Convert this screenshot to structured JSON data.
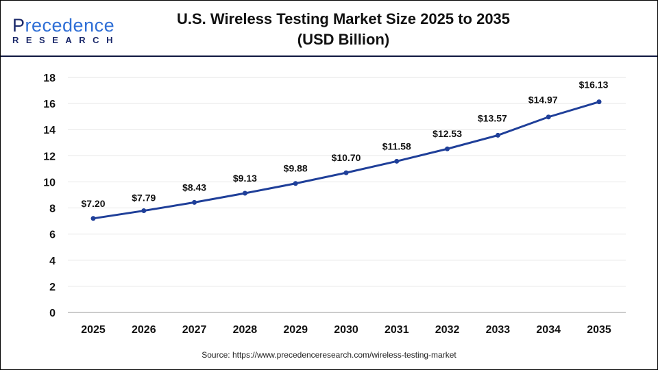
{
  "logo": {
    "text_line1": "Precedence",
    "text_line2": "RESEARCH"
  },
  "title_line1": "U.S. Wireless Testing Market Size 2025 to 2035",
  "title_line2": "(USD Billion)",
  "source": "Source: https://www.precedenceresearch.com/wireless-testing-market",
  "chart_data": {
    "type": "line",
    "title": "U.S. Wireless Testing Market Size 2025 to 2035 (USD Billion)",
    "categories": [
      "2025",
      "2026",
      "2027",
      "2028",
      "2029",
      "2030",
      "2031",
      "2032",
      "2033",
      "2034",
      "2035"
    ],
    "values": [
      7.2,
      7.79,
      8.43,
      9.13,
      9.88,
      10.7,
      11.58,
      12.53,
      13.57,
      14.97,
      16.13
    ],
    "data_labels": [
      "$7.20",
      "$7.79",
      "$8.43",
      "$9.13",
      "$9.88",
      "$10.70",
      "$11.58",
      "$12.53",
      "$13.57",
      "$14.97",
      "$16.13"
    ],
    "yticks": [
      "0",
      "2",
      "4",
      "6",
      "8",
      "10",
      "12",
      "14",
      "16",
      "18"
    ],
    "ylim": [
      0,
      18
    ],
    "grid": true,
    "line_color": "#1f3f99"
  }
}
